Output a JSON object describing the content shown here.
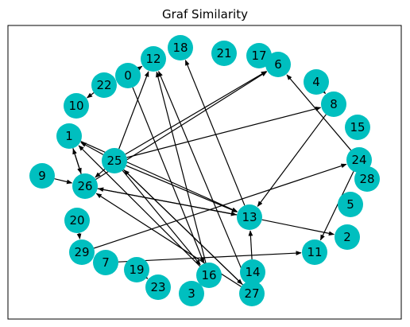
{
  "figure": {
    "title": "Graf Similarity",
    "node_color": "#00BFBF",
    "edge_color": "#000000"
  },
  "graph": {
    "nodes": [
      "0",
      "1",
      "2",
      "3",
      "4",
      "5",
      "6",
      "7",
      "8",
      "9",
      "10",
      "11",
      "12",
      "13",
      "14",
      "15",
      "16",
      "17",
      "18",
      "19",
      "20",
      "21",
      "22",
      "23",
      "24",
      "25",
      "26",
      "27",
      "28",
      "29"
    ],
    "edges": [
      [
        "22",
        "10"
      ],
      [
        "0",
        "12"
      ],
      [
        "4",
        "8"
      ],
      [
        "6",
        "17"
      ],
      [
        "24",
        "6"
      ],
      [
        "20",
        "29"
      ],
      [
        "19",
        "23"
      ],
      [
        "1",
        "26"
      ],
      [
        "26",
        "1"
      ],
      [
        "25",
        "1"
      ],
      [
        "25",
        "26"
      ],
      [
        "9",
        "26"
      ],
      [
        "25",
        "12"
      ],
      [
        "25",
        "6"
      ],
      [
        "25",
        "8"
      ],
      [
        "26",
        "6"
      ],
      [
        "1",
        "13"
      ],
      [
        "26",
        "13"
      ],
      [
        "13",
        "26"
      ],
      [
        "25",
        "13"
      ],
      [
        "25",
        "16"
      ],
      [
        "25",
        "27"
      ],
      [
        "27",
        "25"
      ],
      [
        "16",
        "12"
      ],
      [
        "27",
        "12"
      ],
      [
        "0",
        "16"
      ],
      [
        "16",
        "1"
      ],
      [
        "27",
        "26"
      ],
      [
        "14",
        "13"
      ],
      [
        "13",
        "18"
      ],
      [
        "8",
        "13"
      ],
      [
        "13",
        "2"
      ],
      [
        "24",
        "11"
      ],
      [
        "7",
        "11"
      ],
      [
        "29",
        "24"
      ]
    ]
  }
}
